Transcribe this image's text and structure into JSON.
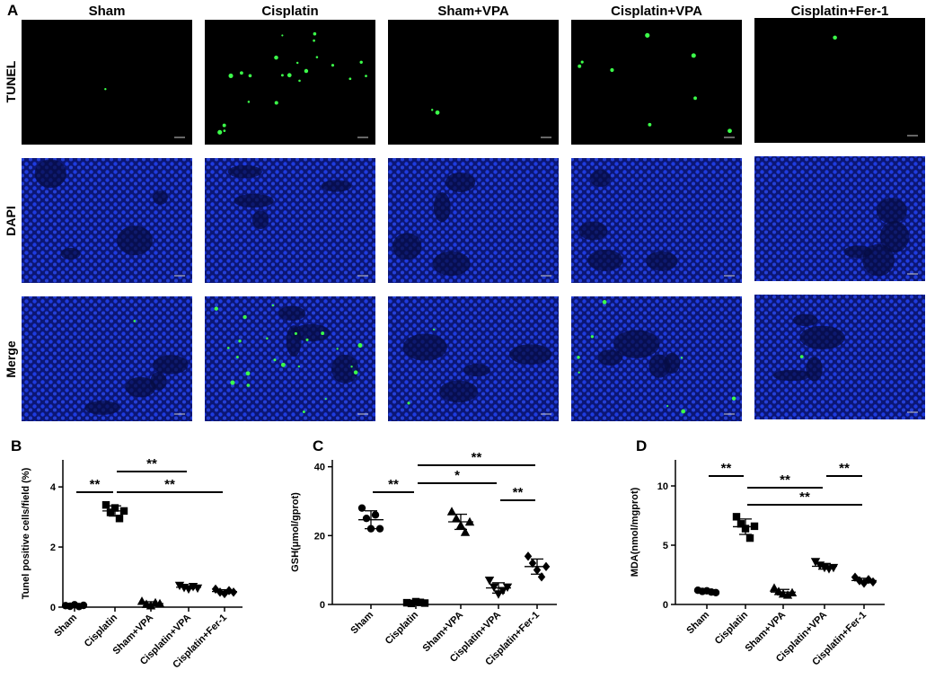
{
  "panel_a": {
    "label": "A",
    "columns": [
      "Sham",
      "Cisplatin",
      "Sham+VPA",
      "Cisplatin+VPA",
      "Cisplatin+Fer-1"
    ],
    "rows": [
      "TUNEL",
      "DAPI",
      "Merge"
    ]
  },
  "chart_data": [
    {
      "type": "dot",
      "panel_label": "B",
      "ylabel": "Tunel positive cells/field (%)",
      "categories": [
        "Sham",
        "Cisplatin",
        "Sham+VPA",
        "Cisplatin+VPA",
        "Cisplatin+Fer-1"
      ],
      "markers": [
        "circle",
        "square",
        "triangle-up",
        "triangle-down",
        "diamond"
      ],
      "values": [
        [
          0.05,
          0.03,
          0.08,
          0.02,
          0.06
        ],
        [
          3.4,
          3.15,
          3.3,
          2.95,
          3.2
        ],
        [
          0.2,
          0.1,
          0.05,
          0.15,
          0.12
        ],
        [
          0.72,
          0.65,
          0.6,
          0.68,
          0.63
        ],
        [
          0.6,
          0.5,
          0.45,
          0.55,
          0.5
        ]
      ],
      "means": [
        0.05,
        3.2,
        0.12,
        0.66,
        0.52
      ],
      "sds": [
        0.02,
        0.17,
        0.06,
        0.05,
        0.06
      ],
      "ylim": [
        0,
        4.9
      ],
      "yticks": [
        0,
        2,
        4
      ],
      "brackets": [
        {
          "between": [
            "Sham",
            "Cisplatin"
          ],
          "label": "**"
        },
        {
          "between": [
            "Cisplatin",
            "Cisplatin+VPA"
          ],
          "label": "**"
        },
        {
          "between": [
            "Cisplatin",
            "Cisplatin+Fer-1"
          ],
          "label": "**"
        }
      ]
    },
    {
      "type": "dot",
      "panel_label": "C",
      "ylabel": "GSH(μmol/gprot)",
      "categories": [
        "Sham",
        "Cisplatin",
        "Sham+VPA",
        "Cisplatin+VPA",
        "Cisplatin+Fer-1"
      ],
      "markers": [
        "circle",
        "square",
        "triangle-up",
        "triangle-down",
        "diamond"
      ],
      "values": [
        [
          28,
          25,
          22,
          26,
          22
        ],
        [
          0.5,
          0.3,
          0.8,
          0.6,
          0.4
        ],
        [
          27,
          25,
          23,
          21,
          24
        ],
        [
          7,
          5,
          3,
          4,
          5
        ],
        [
          14,
          12,
          10,
          8,
          11
        ]
      ],
      "means": [
        24.6,
        0.52,
        24,
        4.8,
        11
      ],
      "sds": [
        2.6,
        0.2,
        2.2,
        1.5,
        2.2
      ],
      "ylim": [
        0,
        42
      ],
      "yticks": [
        0,
        20,
        40
      ],
      "brackets": [
        {
          "between": [
            "Sham",
            "Cisplatin"
          ],
          "label": "**"
        },
        {
          "between": [
            "Cisplatin",
            "Cisplatin+VPA"
          ],
          "label": "*"
        },
        {
          "between": [
            "Cisplatin",
            "Cisplatin+Fer-1"
          ],
          "label": "**"
        },
        {
          "between": [
            "Cisplatin+VPA",
            "Cisplatin+Fer-1"
          ],
          "label": "**"
        }
      ]
    },
    {
      "type": "dot",
      "panel_label": "D",
      "ylabel": "MDA(nmol/mgprot)",
      "categories": [
        "Sham",
        "Cisplatin",
        "Sham+VPA",
        "Cisplatin+VPA",
        "Cisplatin+Fer-1"
      ],
      "markers": [
        "circle",
        "square",
        "triangle-up",
        "triangle-down",
        "diamond"
      ],
      "values": [
        [
          1.2,
          1.1,
          1.15,
          1.05,
          1.0
        ],
        [
          7.4,
          6.8,
          6.4,
          5.6,
          6.6
        ],
        [
          1.4,
          1.1,
          0.9,
          0.8,
          1.0
        ],
        [
          3.6,
          3.3,
          3.1,
          3.0,
          3.1
        ],
        [
          2.3,
          2.0,
          1.8,
          2.1,
          1.9
        ]
      ],
      "means": [
        1.1,
        6.56,
        1.04,
        3.22,
        2.02
      ],
      "sds": [
        0.08,
        0.65,
        0.23,
        0.24,
        0.19
      ],
      "ylim": [
        0,
        12.2
      ],
      "yticks": [
        0,
        5,
        10
      ],
      "brackets": [
        {
          "between": [
            "Sham",
            "Cisplatin"
          ],
          "label": "**"
        },
        {
          "between": [
            "Cisplatin",
            "Cisplatin+VPA"
          ],
          "label": "**"
        },
        {
          "between": [
            "Cisplatin",
            "Cisplatin+Fer-1"
          ],
          "label": "**"
        },
        {
          "between": [
            "Cisplatin+VPA",
            "Cisplatin+Fer-1"
          ],
          "label": "**"
        }
      ]
    }
  ]
}
